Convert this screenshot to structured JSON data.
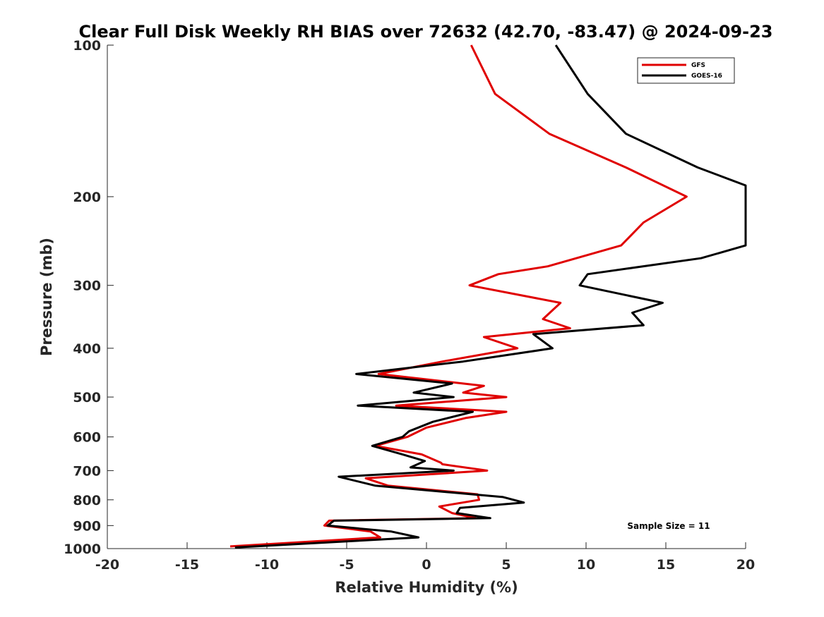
{
  "chart_data": {
    "type": "line",
    "title": "Clear Full Disk Weekly RH BIAS over 72632 (42.70, -83.47) @ 2024-09-23",
    "xlabel": "Relative Humidity (%)",
    "ylabel": "Pressure (mb)",
    "xlim": [
      -20,
      20
    ],
    "ylim": [
      100,
      1000
    ],
    "y_scale": "log",
    "y_reversed": true,
    "x_ticks": [
      -20,
      -15,
      -10,
      -5,
      0,
      5,
      10,
      15,
      20
    ],
    "y_ticks": [
      100,
      200,
      300,
      400,
      500,
      600,
      700,
      800,
      900,
      1000
    ],
    "grid": false,
    "legend_position": "top-right",
    "annotation": "Sample Size = 11",
    "series": [
      {
        "name": "GFS",
        "color": "#e00000",
        "points": [
          [
            2.8,
            100
          ],
          [
            4.3,
            125
          ],
          [
            7.7,
            150
          ],
          [
            12.5,
            175
          ],
          [
            16.3,
            200
          ],
          [
            13.6,
            225
          ],
          [
            12.2,
            250
          ],
          [
            7.6,
            275
          ],
          [
            4.5,
            285
          ],
          [
            2.7,
            300
          ],
          [
            8.4,
            325
          ],
          [
            7.3,
            350
          ],
          [
            9,
            365
          ],
          [
            3.6,
            380
          ],
          [
            5.7,
            400
          ],
          [
            1,
            425
          ],
          [
            -3,
            450
          ],
          [
            3.6,
            475
          ],
          [
            2.3,
            490
          ],
          [
            5,
            500
          ],
          [
            -1.9,
            520
          ],
          [
            5,
            535
          ],
          [
            2.5,
            550
          ],
          [
            0,
            575
          ],
          [
            -1.2,
            600
          ],
          [
            -3.2,
            625
          ],
          [
            -0.3,
            650
          ],
          [
            0.9,
            675
          ],
          [
            1,
            680
          ],
          [
            3.8,
            700
          ],
          [
            -3.8,
            725
          ],
          [
            -2.4,
            750
          ],
          [
            3.2,
            780
          ],
          [
            3.3,
            800
          ],
          [
            0.8,
            825
          ],
          [
            1.6,
            850
          ],
          [
            3.1,
            870
          ],
          [
            -6.1,
            880
          ],
          [
            -6.4,
            900
          ],
          [
            -3.5,
            925
          ],
          [
            -2.9,
            950
          ],
          [
            -12.3,
            990
          ]
        ]
      },
      {
        "name": "GOES-16",
        "color": "#000000",
        "points": [
          [
            8.1,
            100
          ],
          [
            10.1,
            125
          ],
          [
            12.5,
            150
          ],
          [
            17,
            175
          ],
          [
            20,
            190
          ],
          [
            20,
            250
          ],
          [
            17.2,
            265
          ],
          [
            10.1,
            285
          ],
          [
            9.6,
            300
          ],
          [
            14.8,
            325
          ],
          [
            12.9,
            340
          ],
          [
            13.6,
            360
          ],
          [
            6.7,
            375
          ],
          [
            7.9,
            400
          ],
          [
            2.3,
            425
          ],
          [
            -4.4,
            450
          ],
          [
            1.6,
            470
          ],
          [
            -0.8,
            490
          ],
          [
            1.7,
            500
          ],
          [
            -4.3,
            520
          ],
          [
            2.9,
            535
          ],
          [
            0.4,
            560
          ],
          [
            -1.1,
            585
          ],
          [
            -1.5,
            600
          ],
          [
            -3.4,
            625
          ],
          [
            -1.5,
            650
          ],
          [
            -0.1,
            670
          ],
          [
            -1,
            690
          ],
          [
            1.7,
            700
          ],
          [
            -5.5,
            720
          ],
          [
            -3.2,
            750
          ],
          [
            4.8,
            790
          ],
          [
            6.1,
            810
          ],
          [
            2.1,
            830
          ],
          [
            1.9,
            850
          ],
          [
            4,
            870
          ],
          [
            -5.8,
            880
          ],
          [
            -6.2,
            900
          ],
          [
            -2.2,
            925
          ],
          [
            -0.5,
            950
          ],
          [
            -12,
            995
          ]
        ]
      }
    ]
  }
}
